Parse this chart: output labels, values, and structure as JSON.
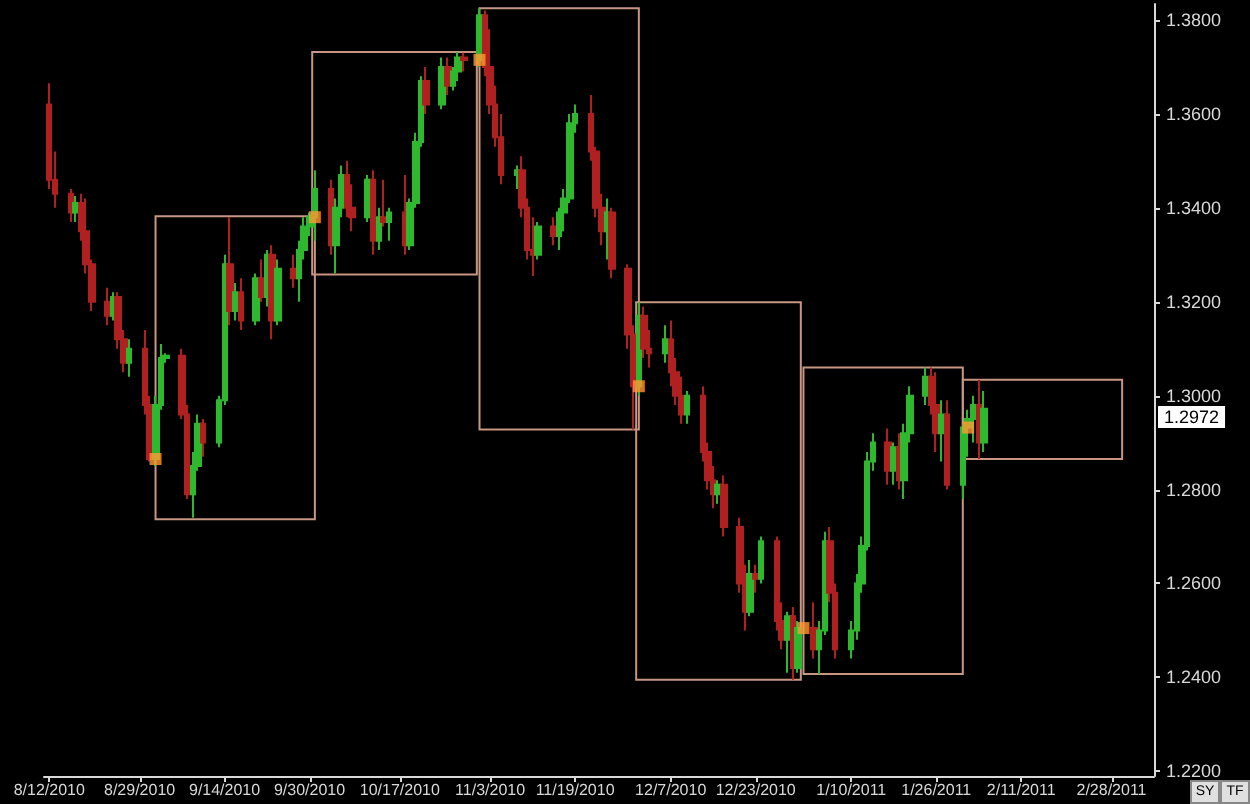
{
  "chart_data": {
    "type": "candlestick",
    "xlim": [
      "2010-08-11",
      "2011-03-08"
    ],
    "ylim": [
      1.219,
      1.3834
    ],
    "xticks": [
      {
        "value": "2010-08-12",
        "label": "8/12/2010"
      },
      {
        "value": "2010-08-29",
        "label": "8/29/2010"
      },
      {
        "value": "2010-09-14",
        "label": "9/14/2010"
      },
      {
        "value": "2010-09-30",
        "label": "9/30/2010"
      },
      {
        "value": "2010-10-17",
        "label": "10/17/2010"
      },
      {
        "value": "2010-11-03",
        "label": "11/3/2010"
      },
      {
        "value": "2010-11-19",
        "label": "11/19/2010"
      },
      {
        "value": "2010-12-07",
        "label": "12/7/2010"
      },
      {
        "value": "2010-12-23",
        "label": "12/23/2010"
      },
      {
        "value": "2011-01-10",
        "label": "1/10/2011"
      },
      {
        "value": "2011-01-26",
        "label": "1/26/2011"
      },
      {
        "value": "2011-02-11",
        "label": "2/11/2011"
      },
      {
        "value": "2011-02-28",
        "label": "2/28/2011"
      }
    ],
    "yticks": [
      {
        "value": 1.22,
        "label": "1.2200"
      },
      {
        "value": 1.24,
        "label": "1.2400"
      },
      {
        "value": 1.26,
        "label": "1.2600"
      },
      {
        "value": 1.28,
        "label": "1.2800"
      },
      {
        "value": 1.3,
        "label": "1.3000"
      },
      {
        "value": 1.32,
        "label": "1.3200"
      },
      {
        "value": 1.34,
        "label": "1.3400"
      },
      {
        "value": 1.36,
        "label": "1.3600"
      },
      {
        "value": 1.38,
        "label": "1.3800"
      }
    ],
    "annotations": [
      "1.2972",
      "SY",
      "TF"
    ],
    "series": [
      {
        "x": [
          "2010-08-12",
          "2010-08-13",
          "2010-08-16",
          "2010-08-17",
          "2010-08-18",
          "2010-08-19",
          "2010-08-20",
          "2010-08-23",
          "2010-08-24",
          "2010-08-25",
          "2010-08-26",
          "2010-08-27",
          "2010-08-30",
          "2010-08-31",
          "2010-09-01",
          "2010-09-02",
          "2010-09-03",
          "2010-09-06",
          "2010-09-07",
          "2010-09-08",
          "2010-09-09",
          "2010-09-10",
          "2010-09-13",
          "2010-09-14",
          "2010-09-15",
          "2010-09-16",
          "2010-09-17",
          "2010-09-20",
          "2010-09-21",
          "2010-09-22",
          "2010-09-23",
          "2010-09-24",
          "2010-09-27",
          "2010-09-28",
          "2010-09-29",
          "2010-09-30",
          "2010-10-01",
          "2010-10-04",
          "2010-10-05",
          "2010-10-06",
          "2010-10-07",
          "2010-10-08",
          "2010-10-11",
          "2010-10-12",
          "2010-10-13",
          "2010-10-14",
          "2010-10-15",
          "2010-10-18",
          "2010-10-19",
          "2010-10-20",
          "2010-10-21",
          "2010-10-22",
          "2010-10-25",
          "2010-10-26",
          "2010-10-27",
          "2010-10-28",
          "2010-10-29",
          "2010-11-01",
          "2010-11-02",
          "2010-11-03",
          "2010-11-04",
          "2010-11-05",
          "2010-11-08",
          "2010-11-09",
          "2010-11-10",
          "2010-11-11",
          "2010-11-12",
          "2010-11-15",
          "2010-11-16",
          "2010-11-17",
          "2010-11-18",
          "2010-11-19",
          "2010-11-22",
          "2010-11-23",
          "2010-11-24",
          "2010-11-25",
          "2010-11-26",
          "2010-11-29",
          "2010-11-30",
          "2010-12-01",
          "2010-12-02",
          "2010-12-03",
          "2010-12-06",
          "2010-12-07",
          "2010-12-08",
          "2010-12-09",
          "2010-12-10",
          "2010-12-13",
          "2010-12-14",
          "2010-12-15",
          "2010-12-16",
          "2010-12-17",
          "2010-12-20",
          "2010-12-21",
          "2010-12-22",
          "2010-12-23",
          "2010-12-24",
          "2010-12-27",
          "2010-12-28",
          "2010-12-29",
          "2010-12-30",
          "2010-12-31",
          "2011-01-03",
          "2011-01-04",
          "2011-01-05",
          "2011-01-06",
          "2011-01-07",
          "2011-01-10",
          "2011-01-11",
          "2011-01-12",
          "2011-01-13",
          "2011-01-14",
          "2011-01-17",
          "2011-01-18",
          "2011-01-19",
          "2011-01-20",
          "2011-01-21",
          "2011-01-24",
          "2011-01-25",
          "2011-01-26",
          "2011-01-27",
          "2011-01-28",
          "2011-01-31",
          "2011-02-01",
          "2011-02-02",
          "2011-02-03",
          "2011-02-04"
        ],
        "ohlc": [
          [
            1.362,
            1.3665,
            1.344,
            1.346
          ],
          [
            1.346,
            1.352,
            1.34,
            1.343
          ],
          [
            1.343,
            1.344,
            1.337,
            1.339
          ],
          [
            1.339,
            1.3425,
            1.337,
            1.341
          ],
          [
            1.341,
            1.343,
            1.333,
            1.335
          ],
          [
            1.335,
            1.342,
            1.326,
            1.328
          ],
          [
            1.328,
            1.329,
            1.318,
            1.32
          ],
          [
            1.32,
            1.323,
            1.315,
            1.317
          ],
          [
            1.317,
            1.322,
            1.316,
            1.321
          ],
          [
            1.321,
            1.322,
            1.31,
            1.312
          ],
          [
            1.312,
            1.314,
            1.305,
            1.307
          ],
          [
            1.307,
            1.312,
            1.304,
            1.31
          ],
          [
            1.31,
            1.314,
            1.296,
            1.298
          ],
          [
            1.298,
            1.3,
            1.286,
            1.2865
          ],
          [
            1.2865,
            1.3,
            1.285,
            1.298
          ],
          [
            1.298,
            1.311,
            1.297,
            1.308
          ],
          [
            1.308,
            1.309,
            1.307,
            1.3085
          ],
          [
            1.3085,
            1.31,
            1.295,
            1.296
          ],
          [
            1.296,
            1.298,
            1.278,
            1.279
          ],
          [
            1.279,
            1.288,
            1.274,
            1.285
          ],
          [
            1.285,
            1.296,
            1.284,
            1.294
          ],
          [
            1.294,
            1.295,
            1.287,
            1.29
          ],
          [
            1.29,
            1.3,
            1.289,
            1.299
          ],
          [
            1.299,
            1.33,
            1.298,
            1.328
          ],
          [
            1.328,
            1.338,
            1.315,
            1.318
          ],
          [
            1.318,
            1.324,
            1.316,
            1.322
          ],
          [
            1.322,
            1.325,
            1.314,
            1.316
          ],
          [
            1.316,
            1.326,
            1.315,
            1.325
          ],
          [
            1.325,
            1.329,
            1.32,
            1.321
          ],
          [
            1.321,
            1.331,
            1.319,
            1.33
          ],
          [
            1.33,
            1.332,
            1.312,
            1.316
          ],
          [
            1.316,
            1.329,
            1.315,
            1.327
          ],
          [
            1.327,
            1.33,
            1.323,
            1.325
          ],
          [
            1.325,
            1.333,
            1.32,
            1.331
          ],
          [
            1.331,
            1.338,
            1.329,
            1.336
          ],
          [
            1.336,
            1.339,
            1.334,
            1.338
          ],
          [
            1.338,
            1.348,
            1.333,
            1.344
          ],
          [
            1.344,
            1.346,
            1.33,
            1.332
          ],
          [
            1.332,
            1.342,
            1.326,
            1.34
          ],
          [
            1.34,
            1.349,
            1.338,
            1.347
          ],
          [
            1.347,
            1.35,
            1.338,
            1.34
          ],
          [
            1.34,
            1.345,
            1.335,
            1.338
          ],
          [
            1.338,
            1.347,
            1.337,
            1.346
          ],
          [
            1.346,
            1.348,
            1.33,
            1.333
          ],
          [
            1.333,
            1.34,
            1.331,
            1.338
          ],
          [
            1.338,
            1.346,
            1.336,
            1.337
          ],
          [
            1.337,
            1.34,
            1.333,
            1.339
          ],
          [
            1.339,
            1.347,
            1.33,
            1.332
          ],
          [
            1.332,
            1.342,
            1.331,
            1.341
          ],
          [
            1.341,
            1.356,
            1.34,
            1.354
          ],
          [
            1.354,
            1.368,
            1.353,
            1.367
          ],
          [
            1.367,
            1.37,
            1.36,
            1.362
          ],
          [
            1.362,
            1.372,
            1.361,
            1.37
          ],
          [
            1.37,
            1.372,
            1.364,
            1.366
          ],
          [
            1.366,
            1.37,
            1.365,
            1.369
          ],
          [
            1.369,
            1.3732,
            1.367,
            1.372
          ],
          [
            1.372,
            1.373,
            1.369,
            1.3715
          ],
          [
            1.3715,
            1.3825,
            1.37,
            1.381
          ],
          [
            1.381,
            1.382,
            1.368,
            1.37
          ],
          [
            1.37,
            1.378,
            1.36,
            1.362
          ],
          [
            1.362,
            1.366,
            1.353,
            1.355
          ],
          [
            1.355,
            1.36,
            1.345,
            1.347
          ],
          [
            1.347,
            1.349,
            1.344,
            1.348
          ],
          [
            1.348,
            1.351,
            1.338,
            1.34
          ],
          [
            1.34,
            1.342,
            1.329,
            1.331
          ],
          [
            1.331,
            1.338,
            1.3255,
            1.33
          ],
          [
            1.33,
            1.337,
            1.329,
            1.336
          ],
          [
            1.336,
            1.338,
            1.332,
            1.334
          ],
          [
            1.334,
            1.34,
            1.331,
            1.339
          ],
          [
            1.339,
            1.344,
            1.335,
            1.342
          ],
          [
            1.342,
            1.36,
            1.341,
            1.358
          ],
          [
            1.358,
            1.362,
            1.356,
            1.36
          ],
          [
            1.36,
            1.364,
            1.35,
            1.352
          ],
          [
            1.352,
            1.353,
            1.338,
            1.34
          ],
          [
            1.34,
            1.343,
            1.332,
            1.335
          ],
          [
            1.335,
            1.342,
            1.329,
            1.339
          ],
          [
            1.339,
            1.34,
            1.325,
            1.327
          ],
          [
            1.327,
            1.328,
            1.31,
            1.313
          ],
          [
            1.313,
            1.315,
            1.2928,
            1.302
          ],
          [
            1.302,
            1.3199,
            1.3,
            1.317
          ],
          [
            1.317,
            1.319,
            1.308,
            1.31
          ],
          [
            1.31,
            1.314,
            1.306,
            1.309
          ],
          [
            1.309,
            1.315,
            1.307,
            1.312
          ],
          [
            1.312,
            1.316,
            1.302,
            1.305
          ],
          [
            1.305,
            1.308,
            1.298,
            1.3
          ],
          [
            1.3,
            1.304,
            1.294,
            1.296
          ],
          [
            1.296,
            1.301,
            1.294,
            1.3
          ],
          [
            1.3,
            1.302,
            1.286,
            1.288
          ],
          [
            1.288,
            1.29,
            1.28,
            1.282
          ],
          [
            1.282,
            1.285,
            1.276,
            1.279
          ],
          [
            1.279,
            1.282,
            1.277,
            1.281
          ],
          [
            1.281,
            1.283,
            1.27,
            1.272
          ],
          [
            1.272,
            1.274,
            1.258,
            1.26
          ],
          [
            1.26,
            1.264,
            1.25,
            1.254
          ],
          [
            1.254,
            1.265,
            1.253,
            1.262
          ],
          [
            1.262,
            1.264,
            1.258,
            1.261
          ],
          [
            1.261,
            1.27,
            1.26,
            1.269
          ],
          [
            1.269,
            1.27,
            1.25,
            1.252
          ],
          [
            1.252,
            1.256,
            1.246,
            1.248
          ],
          [
            1.248,
            1.254,
            1.241,
            1.253
          ],
          [
            1.253,
            1.255,
            1.2395,
            1.242
          ],
          [
            1.242,
            1.252,
            1.241,
            1.2505
          ],
          [
            1.2505,
            1.256,
            1.244,
            1.246
          ],
          [
            1.246,
            1.252,
            1.2407,
            1.25
          ],
          [
            1.25,
            1.271,
            1.249,
            1.269
          ],
          [
            1.269,
            1.272,
            1.256,
            1.258
          ],
          [
            1.258,
            1.26,
            1.244,
            1.246
          ],
          [
            1.246,
            1.252,
            1.244,
            1.25
          ],
          [
            1.25,
            1.262,
            1.248,
            1.26
          ],
          [
            1.26,
            1.27,
            1.258,
            1.268
          ],
          [
            1.268,
            1.288,
            1.267,
            1.286
          ],
          [
            1.286,
            1.292,
            1.284,
            1.29
          ],
          [
            1.29,
            1.293,
            1.281,
            1.284
          ],
          [
            1.284,
            1.29,
            1.281,
            1.289
          ],
          [
            1.289,
            1.292,
            1.28,
            1.282
          ],
          [
            1.282,
            1.294,
            1.278,
            1.292
          ],
          [
            1.292,
            1.302,
            1.29,
            1.3
          ],
          [
            1.3,
            1.306,
            1.298,
            1.304
          ],
          [
            1.304,
            1.306,
            1.296,
            1.298
          ],
          [
            1.298,
            1.305,
            1.288,
            1.292
          ],
          [
            1.292,
            1.299,
            1.286,
            1.296
          ],
          [
            1.296,
            1.299,
            1.28,
            1.281
          ],
          [
            1.281,
            1.294,
            1.278,
            1.2932
          ],
          [
            1.2932,
            1.297,
            1.287,
            1.295
          ],
          [
            1.295,
            1.3,
            1.29,
            1.298
          ],
          [
            1.298,
            1.3034,
            1.2865,
            1.29
          ],
          [
            1.29,
            1.301,
            1.288,
            1.2972
          ]
        ],
        "colors": [
          "#b02020",
          "#b02020",
          "#b02020",
          "#2eb82e",
          "#b02020",
          "#b02020",
          "#b02020",
          "#b02020",
          "#2eb82e",
          "#b02020",
          "#b02020",
          "#2eb82e",
          "#b02020",
          "#b02020",
          "#2eb82e",
          "#2eb82e",
          "#2eb82e",
          "#b02020",
          "#b02020",
          "#2eb82e",
          "#2eb82e",
          "#b02020",
          "#2eb82e",
          "#2eb82e",
          "#b02020",
          "#2eb82e",
          "#b02020",
          "#2eb82e",
          "#b02020",
          "#2eb82e",
          "#b02020",
          "#2eb82e",
          "#b02020",
          "#2eb82e",
          "#2eb82e",
          "#2eb82e",
          "#2eb82e",
          "#b02020",
          "#2eb82e",
          "#2eb82e",
          "#b02020",
          "#b02020",
          "#2eb82e",
          "#b02020",
          "#2eb82e",
          "#b02020",
          "#2eb82e",
          "#b02020",
          "#2eb82e",
          "#2eb82e",
          "#2eb82e",
          "#b02020",
          "#2eb82e",
          "#b02020",
          "#2eb82e",
          "#2eb82e",
          "#b02020",
          "#2eb82e",
          "#b02020",
          "#b02020",
          "#b02020",
          "#b02020",
          "#2eb82e",
          "#b02020",
          "#b02020",
          "#b02020",
          "#2eb82e",
          "#b02020",
          "#2eb82e",
          "#2eb82e",
          "#2eb82e",
          "#2eb82e",
          "#b02020",
          "#b02020",
          "#b02020",
          "#2eb82e",
          "#b02020",
          "#b02020",
          "#b02020",
          "#2eb82e",
          "#b02020",
          "#b02020",
          "#2eb82e",
          "#b02020",
          "#b02020",
          "#b02020",
          "#2eb82e",
          "#b02020",
          "#b02020",
          "#b02020",
          "#2eb82e",
          "#b02020",
          "#b02020",
          "#b02020",
          "#2eb82e",
          "#b02020",
          "#2eb82e",
          "#b02020",
          "#b02020",
          "#2eb82e",
          "#b02020",
          "#2eb82e",
          "#b02020",
          "#2eb82e",
          "#2eb82e",
          "#b02020",
          "#b02020",
          "#2eb82e",
          "#2eb82e",
          "#2eb82e",
          "#2eb82e",
          "#2eb82e",
          "#b02020",
          "#2eb82e",
          "#b02020",
          "#2eb82e",
          "#2eb82e",
          "#2eb82e",
          "#b02020",
          "#b02020",
          "#2eb82e",
          "#b02020",
          "#2eb82e",
          "#2eb82e",
          "#2eb82e",
          "#b02020",
          "#2eb82e"
        ]
      },
      {
        "type": "bar",
        "color": "#c89682",
        "x": [
          "2010-09-16",
          "2010-10-16",
          "2010-11-16",
          "2010-12-16",
          "2011-01-16",
          "2011-02-15"
        ],
        "base": [
          1.2737,
          1.3258,
          1.2928,
          1.2395,
          1.2407,
          1.2865
        ],
        "values": [
          0.0645,
          0.0474,
          0.0897,
          0.0804,
          0.0653,
          0.0169
        ]
      },
      {
        "type": "scatter",
        "marker": "square",
        "color": "#ff9933",
        "x": [
          "2010-09-01",
          "2010-10-01",
          "2010-11-01",
          "2010-12-01",
          "2011-01-01",
          "2011-02-01"
        ],
        "values": [
          1.2865,
          1.338,
          1.3715,
          1.302,
          1.2505,
          1.2932
        ]
      }
    ]
  }
}
